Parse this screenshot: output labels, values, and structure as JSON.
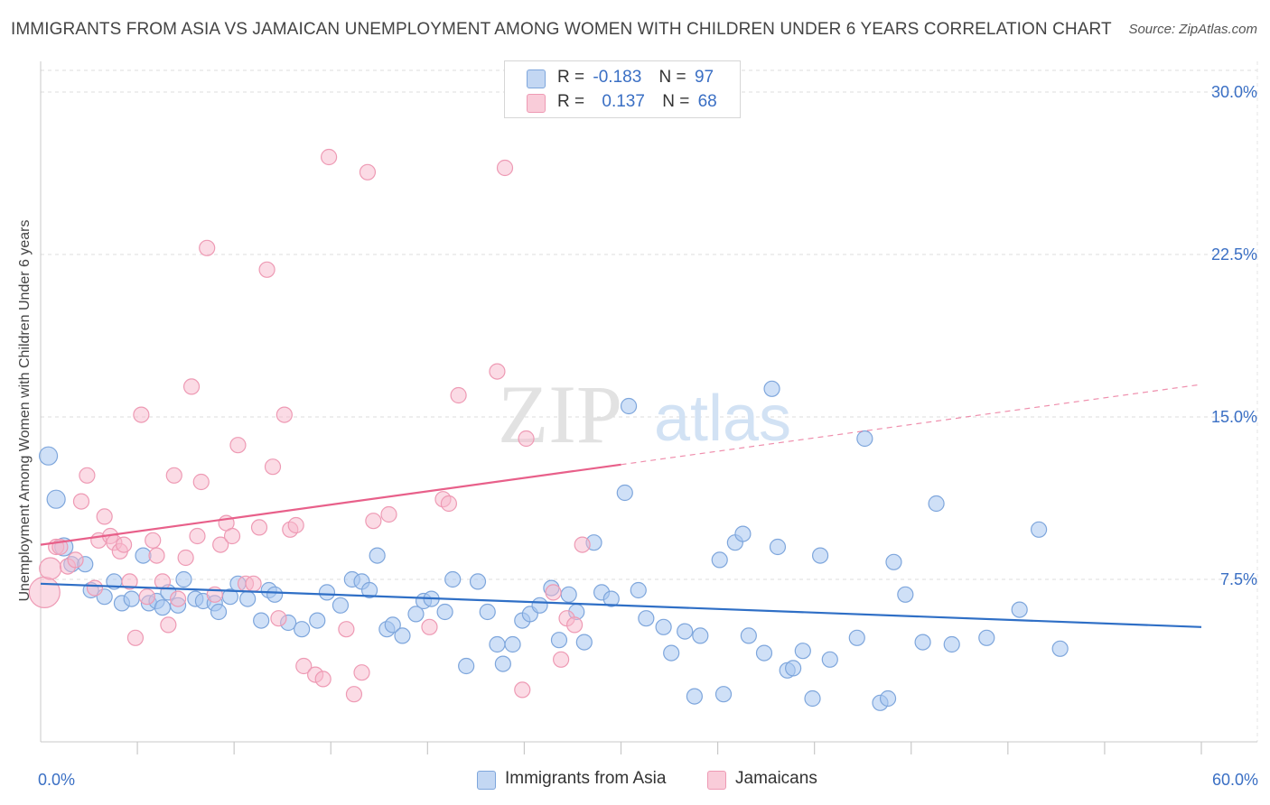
{
  "title": "IMMIGRANTS FROM ASIA VS JAMAICAN UNEMPLOYMENT AMONG WOMEN WITH CHILDREN UNDER 6 YEARS CORRELATION CHART",
  "source": "Source: ZipAtlas.com",
  "watermark": {
    "zip": "ZIP",
    "atlas": "atlas"
  },
  "legend": {
    "rows": [
      {
        "r_label": "R =",
        "r_value": "-0.183",
        "n_label": "N =",
        "n_value": "97",
        "color": "#a8c6f0"
      },
      {
        "r_label": "R =",
        "r_value": "0.137",
        "n_label": "N =",
        "n_value": "68",
        "color": "#f7b8cc"
      }
    ]
  },
  "bottom_legend": [
    "Immigrants from Asia",
    "Jamaicans"
  ],
  "colors": {
    "asia_fill": "#a8c6f0",
    "asia_stroke": "#7ea6dc",
    "asia_line": "#2f6fc6",
    "jam_fill": "#f7b8cc",
    "jam_stroke": "#ee9ab4",
    "jam_line": "#e8608a",
    "axis_text": "#3a6fc4",
    "grid": "#dcdcdc"
  },
  "chart_data": {
    "type": "scatter",
    "title": "IMMIGRANTS FROM ASIA VS JAMAICAN UNEMPLOYMENT AMONG WOMEN WITH CHILDREN UNDER 6 YEARS CORRELATION CHART",
    "xlabel": "",
    "ylabel": "Unemployment Among Women with Children Under 6 years",
    "xlim": [
      0,
      60
    ],
    "ylim": [
      0,
      31
    ],
    "x_tick_labels": [
      "0.0%",
      "60.0%"
    ],
    "y_ticks": [
      7.5,
      15.0,
      22.5,
      30.0
    ],
    "y_tick_labels": [
      "7.5%",
      "15.0%",
      "22.5%",
      "30.0%"
    ],
    "grid": true,
    "legend_position": "top-center",
    "series": [
      {
        "name": "Immigrants from Asia",
        "trend": {
          "x": [
            0,
            60
          ],
          "y": [
            7.3,
            5.3
          ],
          "dashed_from": null
        },
        "points": [
          [
            0.4,
            13.2
          ],
          [
            0.8,
            11.2
          ],
          [
            1.2,
            9.0
          ],
          [
            1.6,
            8.2
          ],
          [
            2.3,
            8.2
          ],
          [
            2.6,
            7.0
          ],
          [
            3.3,
            6.7
          ],
          [
            3.8,
            7.4
          ],
          [
            4.2,
            6.4
          ],
          [
            4.7,
            6.6
          ],
          [
            5.3,
            8.6
          ],
          [
            5.6,
            6.4
          ],
          [
            6.0,
            6.5
          ],
          [
            6.3,
            6.2
          ],
          [
            6.6,
            6.9
          ],
          [
            7.1,
            6.3
          ],
          [
            7.4,
            7.5
          ],
          [
            8.0,
            6.6
          ],
          [
            8.4,
            6.5
          ],
          [
            9.0,
            6.4
          ],
          [
            9.2,
            6.0
          ],
          [
            9.8,
            6.7
          ],
          [
            10.2,
            7.3
          ],
          [
            10.7,
            6.6
          ],
          [
            11.4,
            5.6
          ],
          [
            11.8,
            7.0
          ],
          [
            12.1,
            6.8
          ],
          [
            12.8,
            5.5
          ],
          [
            13.5,
            5.2
          ],
          [
            14.3,
            5.6
          ],
          [
            14.8,
            6.9
          ],
          [
            15.5,
            6.3
          ],
          [
            16.1,
            7.5
          ],
          [
            16.6,
            7.4
          ],
          [
            17.0,
            7.0
          ],
          [
            17.4,
            8.6
          ],
          [
            17.9,
            5.2
          ],
          [
            18.2,
            5.4
          ],
          [
            18.7,
            4.9
          ],
          [
            19.4,
            5.9
          ],
          [
            19.8,
            6.5
          ],
          [
            20.2,
            6.6
          ],
          [
            20.9,
            6.0
          ],
          [
            21.3,
            7.5
          ],
          [
            22.0,
            3.5
          ],
          [
            22.6,
            7.4
          ],
          [
            23.1,
            6.0
          ],
          [
            23.6,
            4.5
          ],
          [
            23.9,
            3.6
          ],
          [
            24.4,
            4.5
          ],
          [
            24.9,
            5.6
          ],
          [
            25.3,
            5.9
          ],
          [
            25.8,
            6.3
          ],
          [
            26.4,
            7.1
          ],
          [
            26.8,
            4.7
          ],
          [
            27.3,
            6.8
          ],
          [
            27.7,
            6.0
          ],
          [
            28.1,
            4.6
          ],
          [
            28.6,
            9.2
          ],
          [
            29.0,
            6.9
          ],
          [
            29.5,
            6.6
          ],
          [
            30.2,
            11.5
          ],
          [
            30.4,
            15.5
          ],
          [
            30.9,
            7.0
          ],
          [
            31.3,
            5.7
          ],
          [
            32.2,
            5.3
          ],
          [
            32.6,
            4.1
          ],
          [
            33.3,
            5.1
          ],
          [
            33.8,
            2.1
          ],
          [
            34.1,
            4.9
          ],
          [
            35.1,
            8.4
          ],
          [
            35.3,
            2.2
          ],
          [
            35.9,
            9.2
          ],
          [
            36.3,
            9.6
          ],
          [
            36.6,
            4.9
          ],
          [
            37.4,
            4.1
          ],
          [
            37.8,
            16.3
          ],
          [
            38.1,
            9.0
          ],
          [
            38.6,
            3.3
          ],
          [
            38.9,
            3.4
          ],
          [
            39.4,
            4.2
          ],
          [
            39.9,
            2.0
          ],
          [
            40.3,
            8.6
          ],
          [
            40.8,
            3.8
          ],
          [
            42.2,
            4.8
          ],
          [
            42.6,
            14.0
          ],
          [
            43.4,
            1.8
          ],
          [
            43.8,
            2.0
          ],
          [
            44.1,
            8.3
          ],
          [
            44.7,
            6.8
          ],
          [
            45.6,
            4.6
          ],
          [
            46.3,
            11.0
          ],
          [
            47.1,
            4.5
          ],
          [
            48.9,
            4.8
          ],
          [
            50.6,
            6.1
          ],
          [
            51.6,
            9.8
          ],
          [
            52.7,
            4.3
          ]
        ]
      },
      {
        "name": "Jamaicans",
        "trend": {
          "x": [
            0,
            60
          ],
          "y": [
            9.1,
            16.5
          ],
          "dashed_from": 30
        },
        "points": [
          [
            0.2,
            6.9
          ],
          [
            0.5,
            8.0
          ],
          [
            0.8,
            9.0
          ],
          [
            1.0,
            9.0
          ],
          [
            1.4,
            8.1
          ],
          [
            1.8,
            8.4
          ],
          [
            2.1,
            11.1
          ],
          [
            2.4,
            12.3
          ],
          [
            2.8,
            7.1
          ],
          [
            3.0,
            9.3
          ],
          [
            3.3,
            10.4
          ],
          [
            3.6,
            9.5
          ],
          [
            3.8,
            9.2
          ],
          [
            4.1,
            8.8
          ],
          [
            4.3,
            9.1
          ],
          [
            4.6,
            7.4
          ],
          [
            4.9,
            4.8
          ],
          [
            5.2,
            15.1
          ],
          [
            5.5,
            6.7
          ],
          [
            5.8,
            9.3
          ],
          [
            6.0,
            8.6
          ],
          [
            6.3,
            7.4
          ],
          [
            6.6,
            5.4
          ],
          [
            6.9,
            12.3
          ],
          [
            7.1,
            6.6
          ],
          [
            7.5,
            8.5
          ],
          [
            7.8,
            16.4
          ],
          [
            8.1,
            9.5
          ],
          [
            8.3,
            12.0
          ],
          [
            8.6,
            22.8
          ],
          [
            9.0,
            6.8
          ],
          [
            9.3,
            9.1
          ],
          [
            9.6,
            10.1
          ],
          [
            9.9,
            9.5
          ],
          [
            10.2,
            13.7
          ],
          [
            10.6,
            7.3
          ],
          [
            11.0,
            7.3
          ],
          [
            11.3,
            9.9
          ],
          [
            11.7,
            21.8
          ],
          [
            12.0,
            12.7
          ],
          [
            12.3,
            5.7
          ],
          [
            12.6,
            15.1
          ],
          [
            12.9,
            9.8
          ],
          [
            13.2,
            10.0
          ],
          [
            13.6,
            3.5
          ],
          [
            14.2,
            3.1
          ],
          [
            14.6,
            2.9
          ],
          [
            14.9,
            27.0
          ],
          [
            15.8,
            5.2
          ],
          [
            16.2,
            2.2
          ],
          [
            16.6,
            3.2
          ],
          [
            16.9,
            26.3
          ],
          [
            17.2,
            10.2
          ],
          [
            18.0,
            10.5
          ],
          [
            20.1,
            5.3
          ],
          [
            20.8,
            11.2
          ],
          [
            21.1,
            11.0
          ],
          [
            21.6,
            16.0
          ],
          [
            23.6,
            17.1
          ],
          [
            24.0,
            26.5
          ],
          [
            24.4,
            29.6
          ],
          [
            24.9,
            2.4
          ],
          [
            25.1,
            14.0
          ],
          [
            26.5,
            6.9
          ],
          [
            26.9,
            3.8
          ],
          [
            27.2,
            5.7
          ],
          [
            27.6,
            5.4
          ],
          [
            28.0,
            9.1
          ]
        ]
      }
    ]
  }
}
